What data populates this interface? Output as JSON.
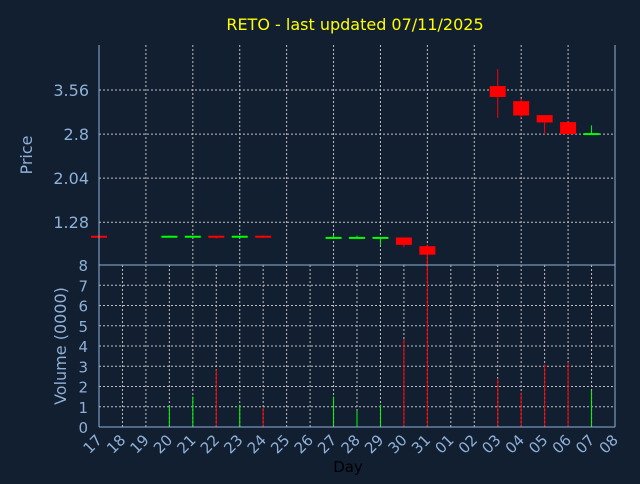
{
  "chart_data": {
    "type": "candlestick",
    "title": "RETO - last updated 07/11/2025",
    "xlabel": "Day",
    "ylabel": "Price",
    "volume_ylabel": "Volume (0000)",
    "price_ticks": [
      "3.56",
      "2.8",
      "2.04",
      "1.28"
    ],
    "price_tick_values": [
      3.56,
      2.8,
      2.04,
      1.28
    ],
    "volume_ticks": [
      "0",
      "1",
      "2",
      "3",
      "4",
      "5",
      "6",
      "7",
      "8"
    ],
    "x_ticks": [
      "17",
      "18",
      "19",
      "20",
      "21",
      "22",
      "23",
      "24",
      "25",
      "26",
      "27",
      "28",
      "29",
      "30",
      "31",
      "01",
      "02",
      "03",
      "04",
      "05",
      "06",
      "07",
      "08"
    ],
    "grid": true,
    "colors": {
      "up": "#00ff00",
      "down": "#ff0000",
      "title": "#ffff00",
      "axis": "#8fb0d8",
      "background": "#111f30"
    },
    "candles": [
      {
        "day": "17",
        "open": 1.03,
        "high": 1.03,
        "low": 1.03,
        "close": 1.03,
        "volume": 0
      },
      {
        "day": "20",
        "open": 1.03,
        "high": 1.05,
        "low": 1.02,
        "close": 1.03,
        "volume": 1.05
      },
      {
        "day": "21",
        "open": 1.03,
        "high": 1.04,
        "low": 1.03,
        "close": 1.03,
        "volume": 1.5
      },
      {
        "day": "22",
        "open": 1.03,
        "high": 1.04,
        "low": 1.0,
        "close": 1.03,
        "volume": 2.85
      },
      {
        "day": "23",
        "open": 1.03,
        "high": 1.04,
        "low": 1.02,
        "close": 1.03,
        "volume": 1.1
      },
      {
        "day": "24",
        "open": 1.03,
        "high": 1.05,
        "low": 1.02,
        "close": 1.03,
        "volume": 0.95
      },
      {
        "day": "27",
        "open": 1.01,
        "high": 1.06,
        "low": 1.01,
        "close": 1.01,
        "volume": 1.5
      },
      {
        "day": "28",
        "open": 1.01,
        "high": 1.05,
        "low": 1.01,
        "close": 1.01,
        "volume": 0.8
      },
      {
        "day": "29",
        "open": 1.01,
        "high": 1.01,
        "low": 0.89,
        "close": 1.01,
        "volume": 1.1
      },
      {
        "day": "30",
        "open": 1.0,
        "high": 1.01,
        "low": 0.85,
        "close": 0.89,
        "volume": 4.35
      },
      {
        "day": "31",
        "open": 0.85,
        "high": 0.86,
        "low": 0.3,
        "close": 0.72,
        "volume": 9
      },
      {
        "day": "03",
        "open": 3.61,
        "high": 3.92,
        "low": 3.08,
        "close": 3.44,
        "volume": 2.4
      },
      {
        "day": "04",
        "open": 3.35,
        "high": 3.41,
        "low": 3.08,
        "close": 3.12,
        "volume": 1.7
      },
      {
        "day": "05",
        "open": 3.11,
        "high": 3.11,
        "low": 2.8,
        "close": 3.0,
        "volume": 3.1
      },
      {
        "day": "06",
        "open": 2.99,
        "high": 3.02,
        "low": 2.79,
        "close": 2.8,
        "volume": 3.2
      },
      {
        "day": "07",
        "open": 2.8,
        "high": 2.95,
        "low": 2.8,
        "close": 2.8,
        "volume": 1.8
      }
    ]
  }
}
